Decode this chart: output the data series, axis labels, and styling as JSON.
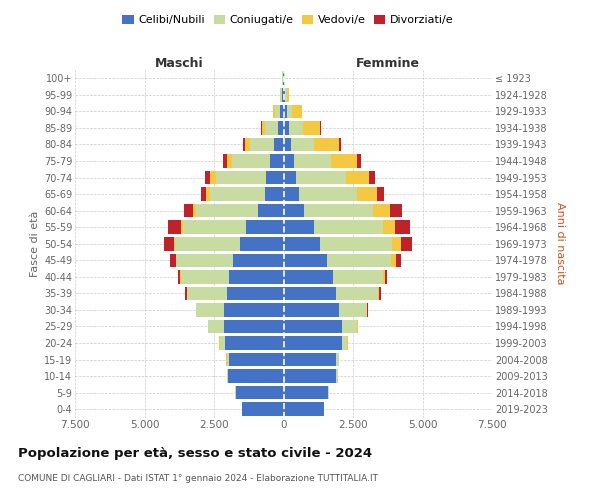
{
  "age_groups": [
    "0-4",
    "5-9",
    "10-14",
    "15-19",
    "20-24",
    "25-29",
    "30-34",
    "35-39",
    "40-44",
    "45-49",
    "50-54",
    "55-59",
    "60-64",
    "65-69",
    "70-74",
    "75-79",
    "80-84",
    "85-89",
    "90-94",
    "95-99",
    "100+"
  ],
  "birth_years": [
    "2019-2023",
    "2014-2018",
    "2009-2013",
    "2004-2008",
    "1999-2003",
    "1994-1998",
    "1989-1993",
    "1984-1988",
    "1979-1983",
    "1974-1978",
    "1969-1973",
    "1964-1968",
    "1959-1963",
    "1954-1958",
    "1949-1953",
    "1944-1948",
    "1939-1943",
    "1934-1938",
    "1929-1933",
    "1924-1928",
    "≤ 1923"
  ],
  "male_celibi": [
    1500,
    1720,
    2000,
    1950,
    2100,
    2150,
    2150,
    2050,
    1950,
    1800,
    1550,
    1350,
    900,
    680,
    620,
    480,
    330,
    190,
    120,
    55,
    30
  ],
  "male_coniugati": [
    5,
    18,
    50,
    100,
    200,
    560,
    980,
    1420,
    1750,
    2050,
    2350,
    2250,
    2250,
    1950,
    1820,
    1380,
    880,
    480,
    190,
    55,
    18
  ],
  "male_vedovi": [
    0,
    0,
    0,
    4,
    4,
    4,
    5,
    8,
    14,
    28,
    55,
    75,
    95,
    145,
    195,
    190,
    170,
    120,
    55,
    18,
    4
  ],
  "male_divorziati": [
    0,
    0,
    0,
    4,
    5,
    10,
    28,
    48,
    75,
    195,
    340,
    490,
    340,
    195,
    175,
    115,
    75,
    28,
    10,
    5,
    2
  ],
  "female_nubili": [
    1450,
    1600,
    1900,
    1900,
    2100,
    2100,
    2000,
    1900,
    1780,
    1570,
    1320,
    1080,
    730,
    540,
    440,
    370,
    275,
    195,
    125,
    65,
    28
  ],
  "female_coniugate": [
    5,
    20,
    50,
    100,
    200,
    555,
    1000,
    1500,
    1800,
    2300,
    2600,
    2500,
    2500,
    2100,
    1800,
    1330,
    840,
    490,
    195,
    48,
    14
  ],
  "female_vedove": [
    0,
    0,
    0,
    4,
    5,
    10,
    18,
    48,
    78,
    175,
    295,
    440,
    590,
    740,
    840,
    940,
    890,
    640,
    340,
    95,
    18
  ],
  "female_divorziate": [
    0,
    0,
    0,
    4,
    5,
    10,
    18,
    48,
    78,
    195,
    410,
    540,
    440,
    245,
    195,
    145,
    78,
    28,
    14,
    5,
    2
  ],
  "colors_celibi_nubili": "#4472C4",
  "colors_coniugati": "#C8DBA0",
  "colors_vedovi": "#F5C842",
  "colors_divorziati": "#C0222C",
  "xlim": 7500,
  "xticks": [
    -7500,
    -5000,
    -2500,
    0,
    2500,
    5000,
    7500
  ],
  "xticklabels": [
    "7.500",
    "5.000",
    "2.500",
    "0",
    "2.500",
    "5.000",
    "7.500"
  ],
  "title": "Popolazione per età, sesso e stato civile - 2024",
  "subtitle": "COMUNE DI CAGLIARI - Dati ISTAT 1° gennaio 2024 - Elaborazione TUTTITALIA.IT",
  "ylabel_left": "Fasce di età",
  "ylabel_right": "Anni di nascita",
  "xlabel_left": "Maschi",
  "xlabel_right": "Femmine",
  "legend_labels": [
    "Celibi/Nubili",
    "Coniugati/e",
    "Vedovi/e",
    "Divorziati/e"
  ],
  "bg_color": "#FFFFFF",
  "grid_color": "#CCCCCC"
}
